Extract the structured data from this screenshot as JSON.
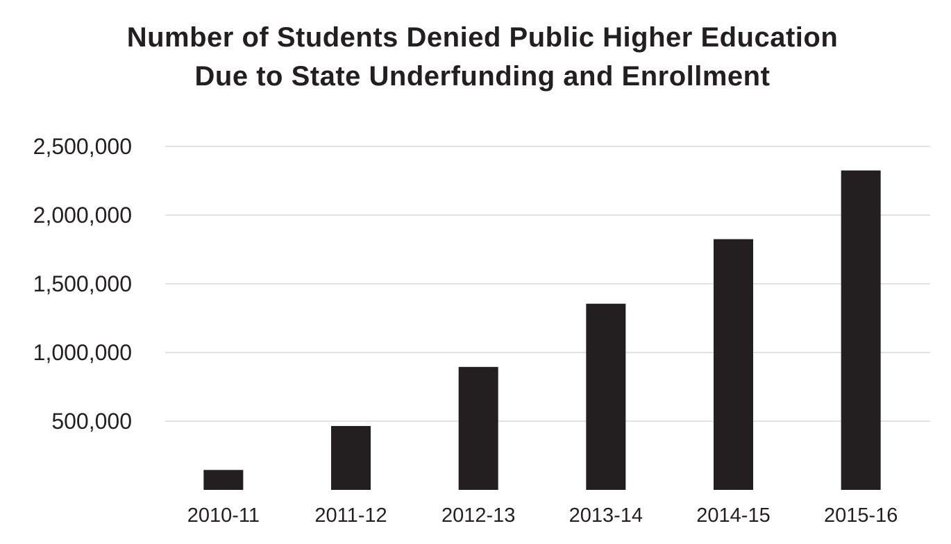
{
  "chart_data": {
    "type": "bar",
    "title_lines": [
      "Number of Students Denied Public Higher Education",
      "Due to State Underfunding and Enrollment"
    ],
    "categories": [
      "2010-11",
      "2011-12",
      "2012-13",
      "2013-14",
      "2014-15",
      "2015-16"
    ],
    "values": [
      145000,
      465000,
      895000,
      1355000,
      1825000,
      2325000
    ],
    "xlabel": "",
    "ylabel": "",
    "ylim": [
      0,
      2500000
    ],
    "yticks": [
      500000,
      1000000,
      1500000,
      2000000,
      2500000
    ],
    "ytick_labels": [
      "500,000",
      "1,000,000",
      "1,500,000",
      "2,000,000",
      "2,500,000"
    ],
    "grid": true,
    "legend": "none",
    "bar_color": "#231f20",
    "grid_color": "#d9d9d9"
  }
}
